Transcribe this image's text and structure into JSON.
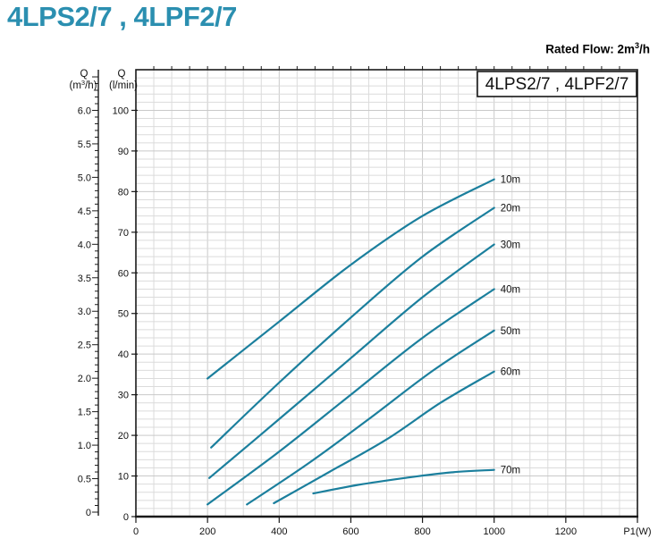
{
  "header": {
    "title": "4LPS2/7 , 4LPF2/7",
    "rated_flow": {
      "prefix": "Rated Flow: 2m",
      "sup": "3",
      "suffix": "/h"
    }
  },
  "chart_data": {
    "type": "line",
    "box_label": "4LPS2/7 , 4LPF2/7",
    "x_axis": {
      "label": "P1(W)",
      "ticks": [
        0,
        200,
        400,
        600,
        800,
        1000,
        1200
      ],
      "range": [
        0,
        1400
      ],
      "minor_step": 50
    },
    "y_axis_flow_m3h": {
      "header": "Q",
      "unit_pre": "(m",
      "unit_sup": "3",
      "unit_post": "/h)",
      "ticks": [
        "6.0",
        "5.5",
        "5.0",
        "4.5",
        "4.0",
        "3.5",
        "3.0",
        "2.5",
        "2.0",
        "1.5",
        "1.0",
        "0.5",
        "0"
      ],
      "range": [
        0,
        6.6
      ],
      "minor_step": 0.1
    },
    "y_axis_flow_lmin": {
      "header": "Q",
      "unit": "(l/min)",
      "ticks": [
        100,
        90,
        80,
        70,
        60,
        50,
        40,
        30,
        20,
        10,
        0
      ],
      "range": [
        0,
        110
      ],
      "minor_step": 2
    },
    "grid": {
      "x_minor_W": 50,
      "y_minor_lmin": 2
    },
    "legend_position": "top-right-inside",
    "series": [
      {
        "name": "10m",
        "points_W_lmin": [
          [
            200,
            34
          ],
          [
            400,
            48
          ],
          [
            600,
            62
          ],
          [
            800,
            74
          ],
          [
            1000,
            83
          ]
        ]
      },
      {
        "name": "20m",
        "points_W_lmin": [
          [
            210,
            17
          ],
          [
            400,
            33
          ],
          [
            600,
            49
          ],
          [
            800,
            64
          ],
          [
            1000,
            76
          ]
        ]
      },
      {
        "name": "30m",
        "points_W_lmin": [
          [
            205,
            9.5
          ],
          [
            400,
            24
          ],
          [
            600,
            39
          ],
          [
            800,
            54
          ],
          [
            1000,
            67
          ]
        ]
      },
      {
        "name": "40m",
        "points_W_lmin": [
          [
            200,
            3
          ],
          [
            400,
            16
          ],
          [
            600,
            30
          ],
          [
            800,
            44
          ],
          [
            1000,
            56
          ]
        ]
      },
      {
        "name": "50m",
        "points_W_lmin": [
          [
            310,
            3
          ],
          [
            480,
            13
          ],
          [
            650,
            24
          ],
          [
            830,
            36
          ],
          [
            1000,
            45.8
          ]
        ]
      },
      {
        "name": "60m",
        "points_W_lmin": [
          [
            385,
            3.3
          ],
          [
            540,
            11
          ],
          [
            700,
            19
          ],
          [
            850,
            28
          ],
          [
            1000,
            35.7
          ]
        ]
      },
      {
        "name": "70m",
        "points_W_lmin": [
          [
            495,
            5.7
          ],
          [
            620,
            7.8
          ],
          [
            750,
            9.5
          ],
          [
            880,
            10.9
          ],
          [
            1000,
            11.5
          ]
        ]
      }
    ],
    "colors": {
      "curve": "#1b7f9d",
      "title": "#2b8fb0",
      "grid": "#dbdbdb",
      "grid_major": "#c9c9c9",
      "axis": "#1a1a1a"
    }
  }
}
